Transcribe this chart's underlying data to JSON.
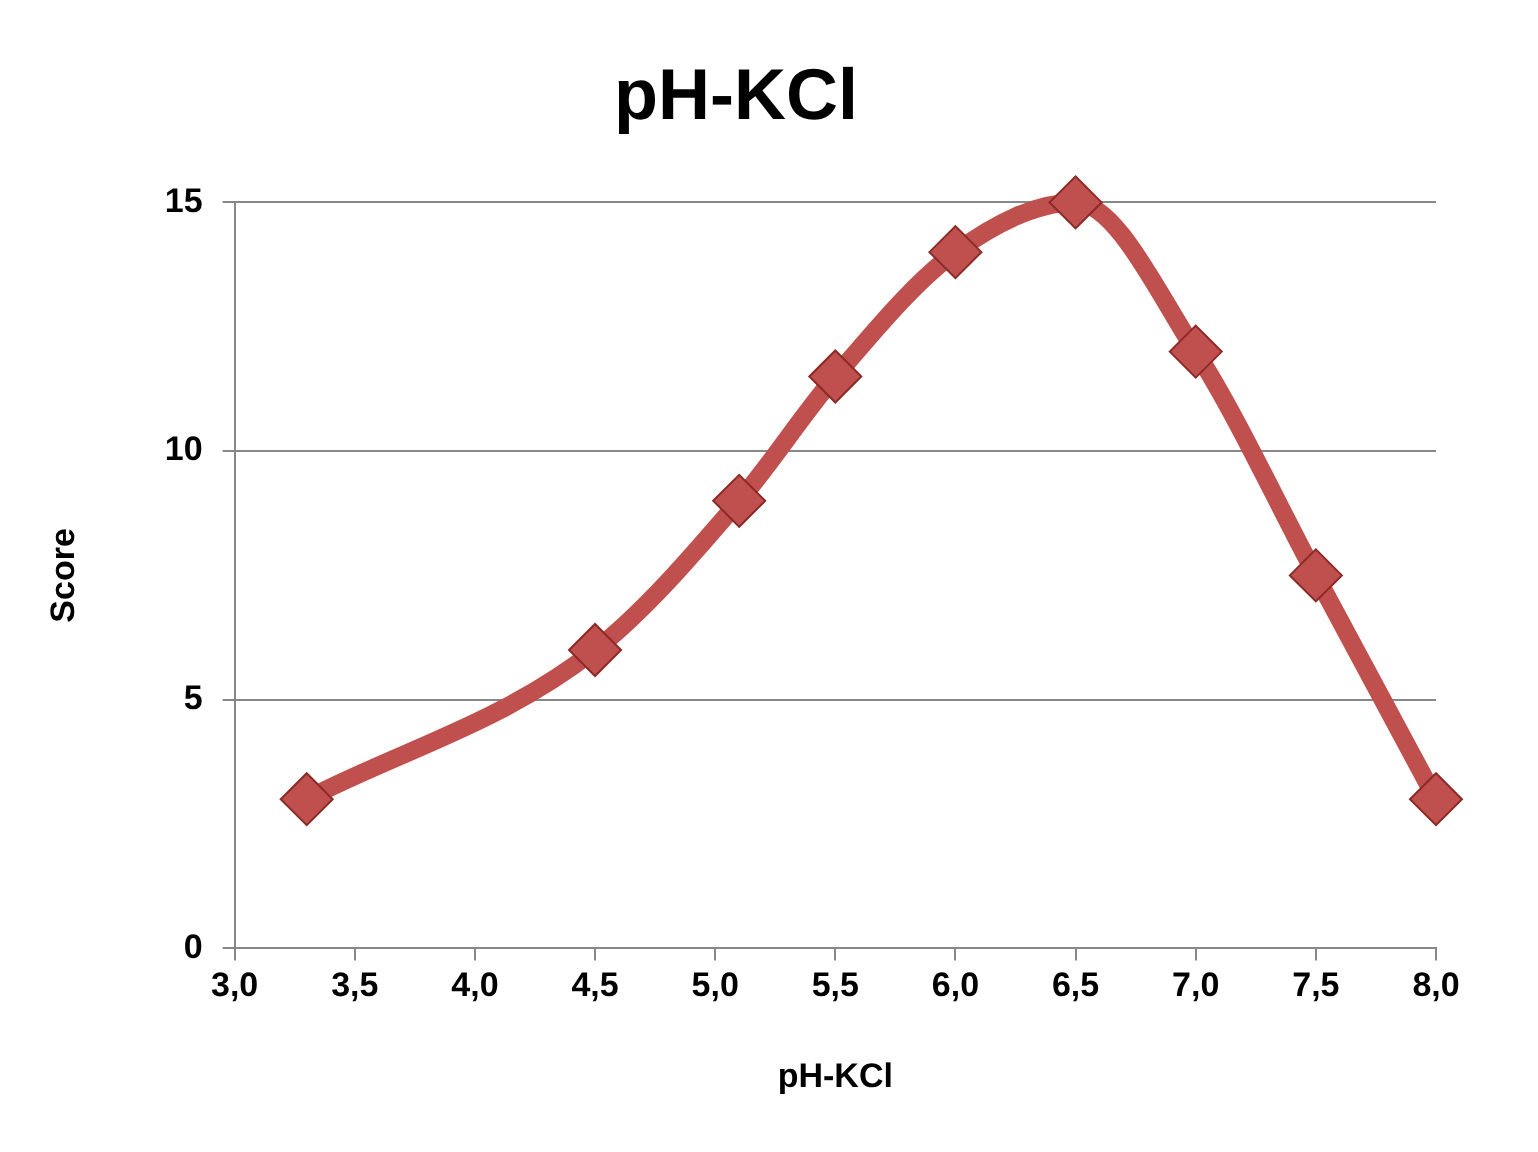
{
  "chart_data": {
    "type": "line",
    "title": "pH-KCl",
    "xlabel": "pH-KCl",
    "ylabel": "Score",
    "x": [
      3.3,
      4.5,
      5.1,
      5.5,
      6.0,
      6.5,
      7.0,
      7.5,
      8.0
    ],
    "series": [
      {
        "color": "#c0504d",
        "values": [
          3,
          6,
          9,
          11.5,
          14,
          15,
          12,
          7.5,
          3
        ]
      }
    ],
    "xlim": [
      3,
      8
    ],
    "xticks": [
      {
        "value": 3,
        "label": "3,0"
      },
      {
        "value": 3.5,
        "label": "3,5"
      },
      {
        "value": 4,
        "label": "4,0"
      },
      {
        "value": 4.5,
        "label": "4,5"
      },
      {
        "value": 5,
        "label": "5,0"
      },
      {
        "value": 5.5,
        "label": "5,5"
      },
      {
        "value": 6,
        "label": "6,0"
      },
      {
        "value": 6.5,
        "label": "6,5"
      },
      {
        "value": 7,
        "label": "7,0"
      },
      {
        "value": 7.5,
        "label": "7,5"
      },
      {
        "value": 8,
        "label": "8,0"
      }
    ],
    "ylim": [
      0,
      15
    ],
    "yticks": [
      0,
      5,
      10,
      15
    ],
    "grid": "y",
    "marker": "diamond",
    "line_style": "solid",
    "legend": false
  }
}
